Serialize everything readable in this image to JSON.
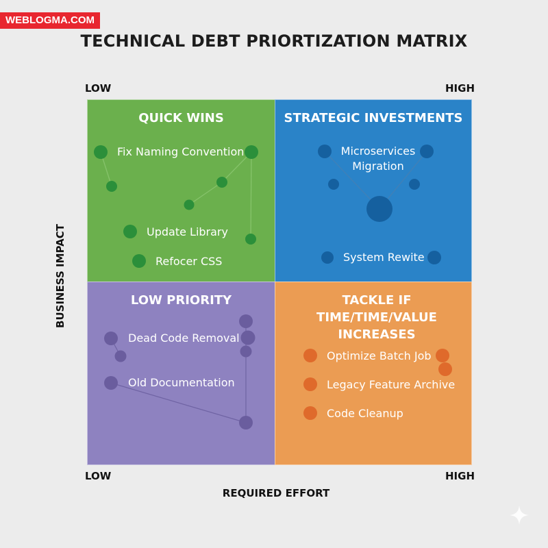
{
  "brand": "WEBLOGMA.COM",
  "title": "TECHNICAL DEBT PRIORTIZATION MATRIX",
  "axes": {
    "x_label": "REQUIRED EFFORT",
    "y_label": "BUSINESS IMPACT",
    "low_top": "LOW",
    "high_top": "HIGH",
    "low_bottom": "LOW",
    "high_bottom": "HIGH"
  },
  "quadrants": {
    "quick_wins": {
      "title": "QUICK WINS",
      "color": "#6bb04d",
      "items": [
        "Fix Naming Convention",
        "Update Library",
        "Refocer CSS"
      ]
    },
    "strategic": {
      "title": "STRATEGIC INVESTMENTS",
      "color": "#2a83c8",
      "items": [
        "Microservices Migration",
        "System Rewite"
      ]
    },
    "low_priority": {
      "title": "LOW PRIORITY",
      "color": "#8e82c0",
      "items": [
        "Dead Code Removal",
        "Old Documentation"
      ]
    },
    "tackle": {
      "title": "TACKLE IF TIME/TIME/VALUE INCREASES",
      "color": "#eb9c53",
      "items": [
        "Optimize Batch Job",
        "Legacy Feature Archive",
        "Code Cleanup"
      ]
    }
  }
}
